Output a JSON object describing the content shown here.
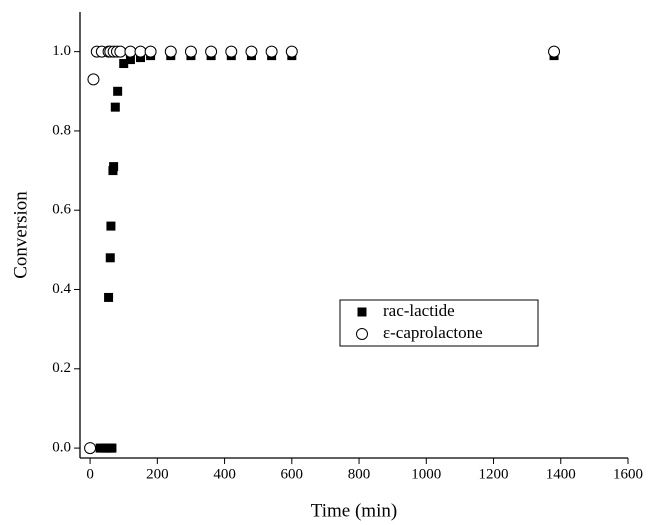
{
  "chart_data": {
    "type": "scatter",
    "x_label": "Time (min)",
    "y_label": "Conversion",
    "xlim": [
      -30,
      1600
    ],
    "xticks": [
      0,
      200,
      400,
      600,
      800,
      1000,
      1200,
      1400,
      1600
    ],
    "ylim": [
      -0.025,
      1.1
    ],
    "yticks": [
      {
        "value": 0,
        "label": "0.0"
      },
      {
        "value": 0.2,
        "label": "0.2"
      },
      {
        "value": 0.4,
        "label": "0.4"
      },
      {
        "value": 0.6,
        "label": "0.6"
      },
      {
        "value": 0.8,
        "label": "0.8"
      },
      {
        "value": 1,
        "label": "1.0"
      }
    ],
    "series": [
      {
        "name": "rac-lactide",
        "color": "#000000",
        "marker": "square",
        "x": [
          30,
          40,
          50,
          60,
          65,
          55,
          60,
          62,
          68,
          70,
          75,
          82,
          100,
          120,
          150,
          180,
          240,
          300,
          360,
          420,
          480,
          540,
          600,
          1380
        ],
        "values": [
          0,
          0,
          0,
          0,
          0,
          0.38,
          0.48,
          0.56,
          0.7,
          0.71,
          0.86,
          0.9,
          0.97,
          0.98,
          0.985,
          0.99,
          0.99,
          0.99,
          0.99,
          0.99,
          0.99,
          0.99,
          0.99,
          0.99
        ]
      },
      {
        "name": "ε-caprolactone",
        "color": "#000000",
        "marker": "circle",
        "x": [
          0,
          10,
          20,
          35,
          55,
          60,
          70,
          80,
          90,
          120,
          150,
          180,
          240,
          300,
          360,
          420,
          480,
          540,
          600,
          1380
        ],
        "values": [
          0,
          0.93,
          1,
          1,
          1,
          1,
          1,
          1,
          1,
          1,
          1,
          1,
          1,
          1,
          1,
          1,
          1,
          1,
          1,
          1
        ]
      }
    ]
  }
}
